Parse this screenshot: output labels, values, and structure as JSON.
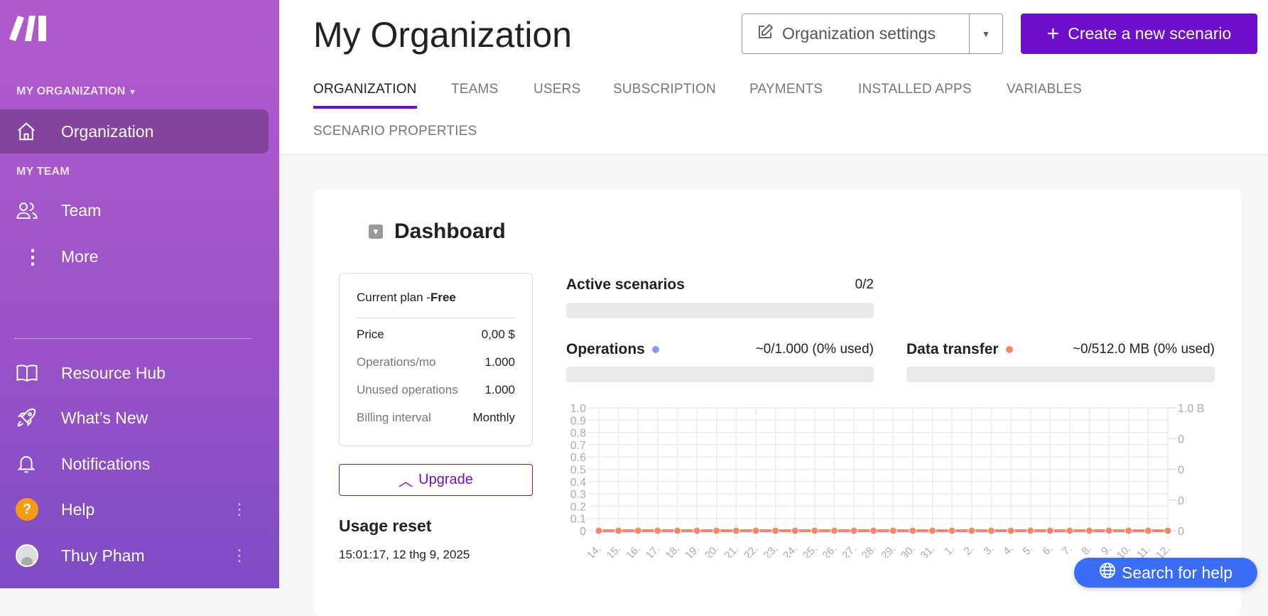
{
  "sidebar": {
    "org_section": "MY ORGANIZATION",
    "team_section": "MY TEAM",
    "items": [
      {
        "label": "Organization",
        "icon": "home-icon"
      },
      {
        "label": "Team",
        "icon": "users-icon"
      },
      {
        "label": "More",
        "icon": "more-vertical-icon"
      },
      {
        "label": "Resource Hub",
        "icon": "book-icon"
      },
      {
        "label": "What’s New",
        "icon": "rocket-icon"
      },
      {
        "label": "Notifications",
        "icon": "bell-icon"
      },
      {
        "label": "Help",
        "icon": "help-icon"
      },
      {
        "label": "Thuy Pham",
        "icon": "avatar-icon"
      }
    ]
  },
  "header": {
    "title": "My Organization",
    "settings_label": "Organization settings",
    "create_label": "Create a new scenario",
    "tabs": [
      "ORGANIZATION",
      "TEAMS",
      "USERS",
      "SUBSCRIPTION",
      "PAYMENTS",
      "INSTALLED APPS",
      "VARIABLES",
      "SCENARIO PROPERTIES"
    ]
  },
  "dashboard": {
    "title": "Dashboard",
    "plan": {
      "label": "Current plan - ",
      "name": "Free",
      "rows": [
        {
          "k": "Price",
          "v": "0,00 $"
        },
        {
          "k": "Operations/mo",
          "v": "1.000"
        },
        {
          "k": "Unused operations",
          "v": "1.000"
        },
        {
          "k": "Billing interval",
          "v": "Monthly"
        }
      ]
    },
    "upgrade_label": "Upgrade",
    "usage_reset_title": "Usage reset",
    "usage_reset_value": "15:01:17, 12 thg 9, 2025",
    "active": {
      "label": "Active scenarios",
      "value": "0/2",
      "fraction": 0
    },
    "operations": {
      "label": "Operations",
      "value": "~0/1.000 (0% used)",
      "fraction": 0,
      "color": "#7f9cf5"
    },
    "transfer": {
      "label": "Data transfer",
      "value": "~0/512.0 MB (0% used)",
      "fraction": 0,
      "color": "#f5866b"
    }
  },
  "chart_data": {
    "type": "line",
    "x": [
      "14",
      "15",
      "16",
      "17",
      "18",
      "19",
      "20",
      "21",
      "22",
      "23",
      "24",
      "25",
      "26",
      "27",
      "28",
      "29",
      "30",
      "31",
      "1",
      "2",
      "3",
      "4",
      "5",
      "6",
      "7",
      "8",
      "9",
      "10",
      "11",
      "12"
    ],
    "series": [
      {
        "name": "Operations",
        "values": [
          0,
          0,
          0,
          0,
          0,
          0,
          0,
          0,
          0,
          0,
          0,
          0,
          0,
          0,
          0,
          0,
          0,
          0,
          0,
          0,
          0,
          0,
          0,
          0,
          0,
          0,
          0,
          0,
          0,
          0
        ],
        "color": "#7f9cf5"
      },
      {
        "name": "Data transfer",
        "values": [
          0,
          0,
          0,
          0,
          0,
          0,
          0,
          0,
          0,
          0,
          0,
          0,
          0,
          0,
          0,
          0,
          0,
          0,
          0,
          0,
          0,
          0,
          0,
          0,
          0,
          0,
          0,
          0,
          0,
          0
        ],
        "color": "#f5866b"
      }
    ],
    "ylim": [
      0,
      1
    ],
    "yticks": [
      "0",
      "0.1",
      "0.2",
      "0.3",
      "0.4",
      "0.5",
      "0.6",
      "0.7",
      "0.8",
      "0.9",
      "1.0"
    ],
    "y2ticks": [
      "0",
      "0",
      "0",
      "0",
      "1.0 B"
    ],
    "grid": true
  },
  "help_button": "Search for help"
}
